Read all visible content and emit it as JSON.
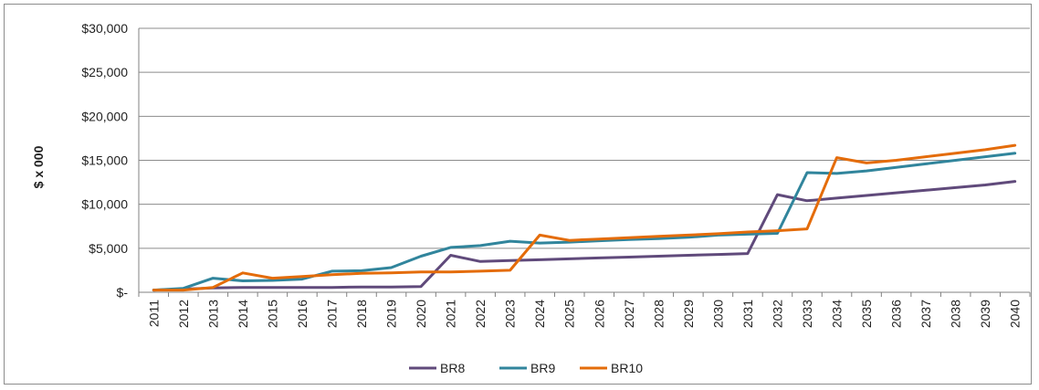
{
  "chart_data": {
    "type": "line",
    "title": "",
    "xlabel": "",
    "ylabel": "$ x 000",
    "ylim": [
      0,
      30000
    ],
    "y_ticks": [
      0,
      5000,
      10000,
      15000,
      20000,
      25000,
      30000
    ],
    "y_tick_labels": [
      "$-",
      "$5,000",
      "$10,000",
      "$15,000",
      "$20,000",
      "$25,000",
      "$30,000"
    ],
    "categories": [
      "2011",
      "2012",
      "2013",
      "2014",
      "2015",
      "2016",
      "2017",
      "2018",
      "2019",
      "2020",
      "2021",
      "2022",
      "2023",
      "2024",
      "2025",
      "2026",
      "2027",
      "2028",
      "2029",
      "2030",
      "2031",
      "2032",
      "2033",
      "2034",
      "2035",
      "2036",
      "2037",
      "2038",
      "2039",
      "2040"
    ],
    "grid": true,
    "legend_position": "bottom",
    "series": [
      {
        "name": "BR8",
        "color": "#604a7b",
        "values": [
          250,
          350,
          500,
          550,
          550,
          550,
          550,
          600,
          600,
          650,
          4200,
          3500,
          3600,
          3700,
          3800,
          3900,
          4000,
          4100,
          4200,
          4300,
          4400,
          11100,
          10400,
          10700,
          11000,
          11300,
          11600,
          11900,
          12200,
          12600
        ]
      },
      {
        "name": "BR9",
        "color": "#31859c",
        "values": [
          250,
          450,
          1600,
          1300,
          1350,
          1500,
          2400,
          2450,
          2800,
          4100,
          5100,
          5300,
          5800,
          5600,
          5700,
          5850,
          6000,
          6100,
          6250,
          6500,
          6600,
          6700,
          13600,
          13500,
          13800,
          14200,
          14600,
          15000,
          15400,
          15800
        ]
      },
      {
        "name": "BR10",
        "color": "#e46c0a",
        "values": [
          250,
          250,
          550,
          2200,
          1600,
          1800,
          2000,
          2150,
          2200,
          2300,
          2300,
          2400,
          2500,
          6500,
          5900,
          6050,
          6200,
          6350,
          6500,
          6650,
          6850,
          7000,
          7200,
          15300,
          14700,
          15000,
          15400,
          15800,
          16200,
          16700
        ]
      }
    ]
  }
}
